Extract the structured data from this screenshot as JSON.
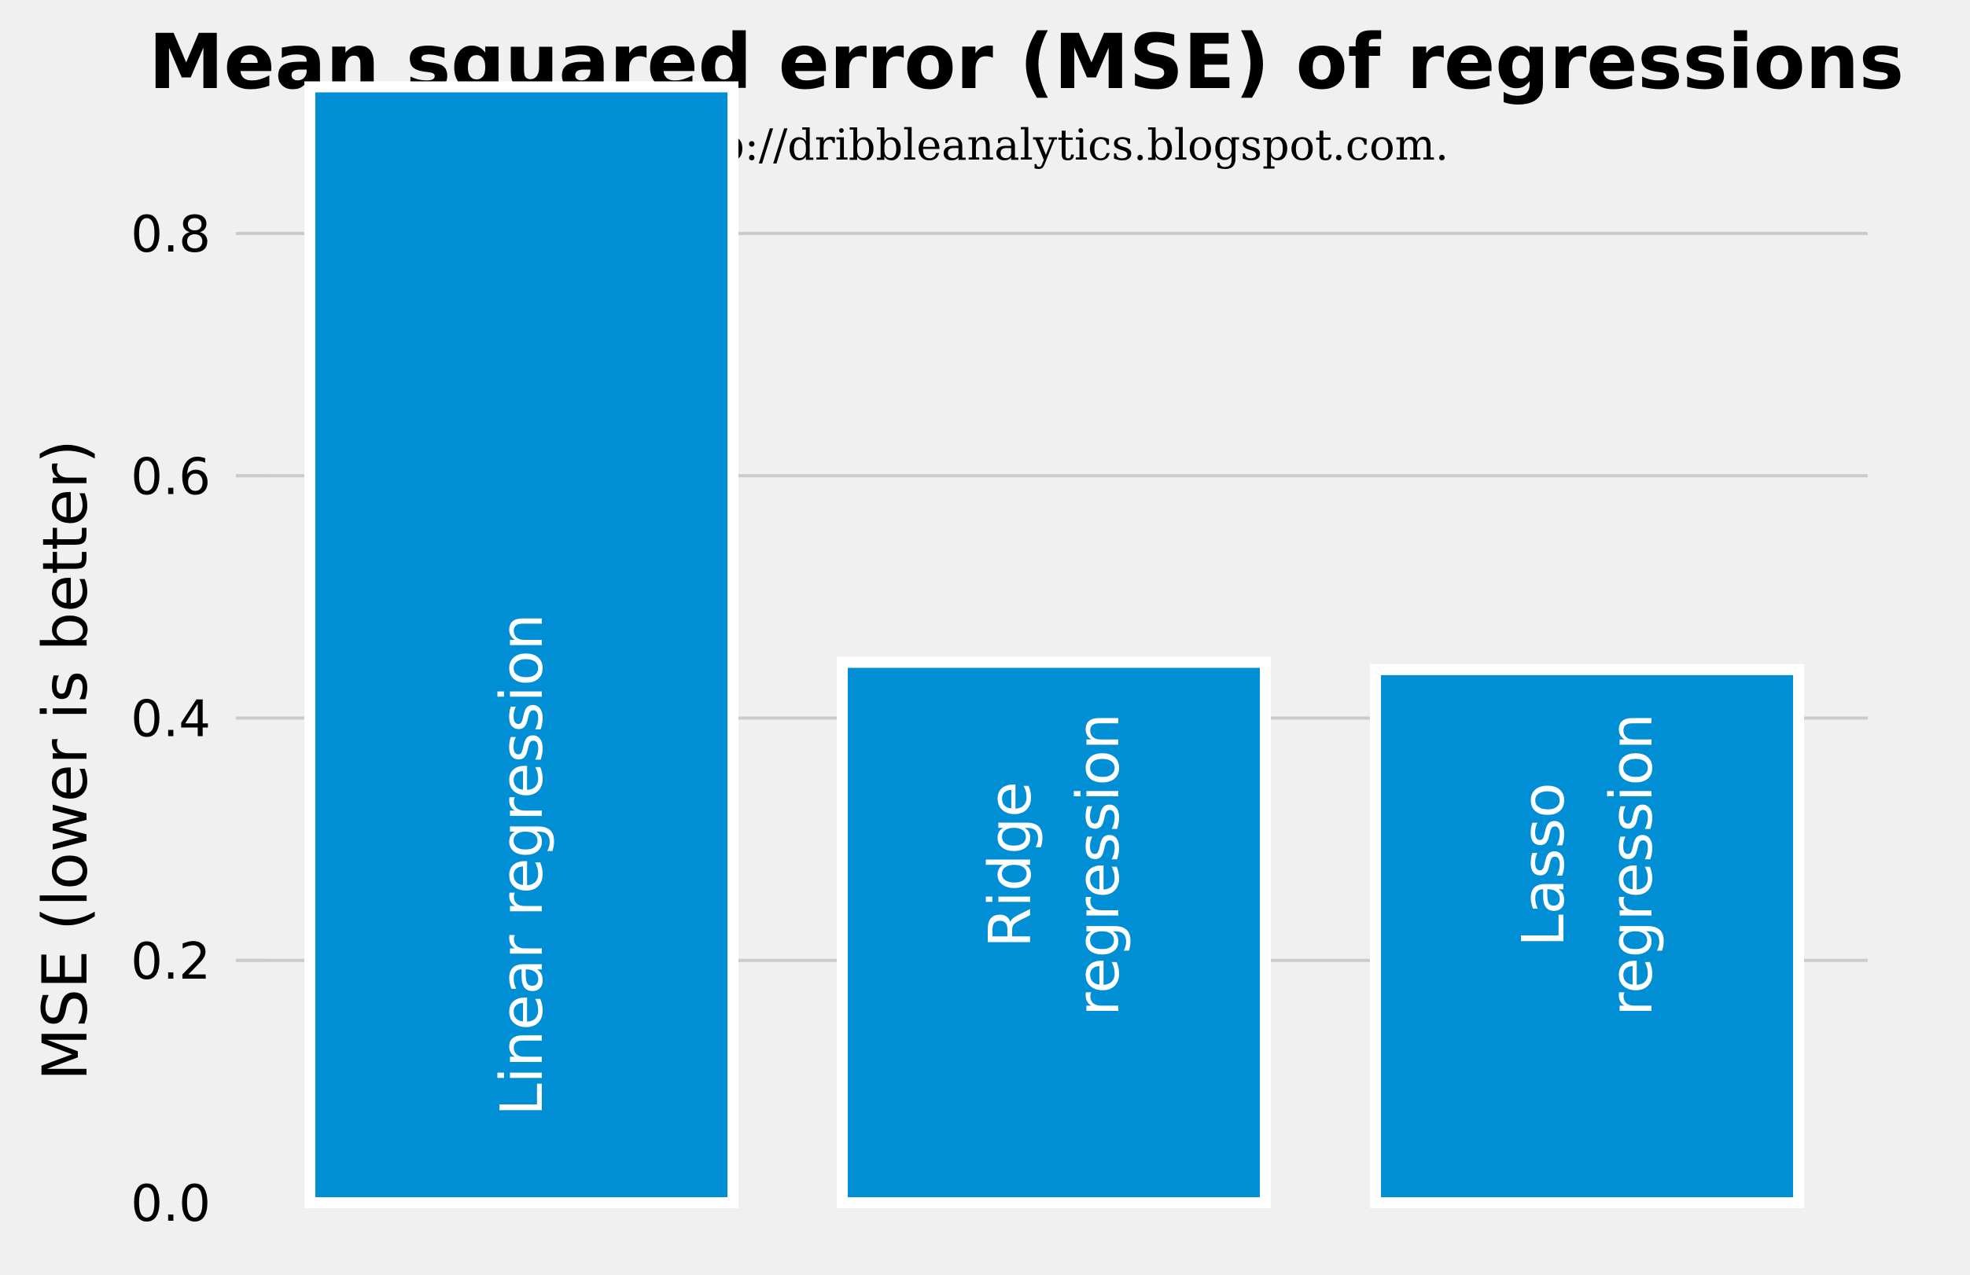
{
  "chart_data": {
    "type": "bar",
    "title": "Mean squared error (MSE) of regressions",
    "subtitle": "http://dribbleanalytics.blogspot.com.",
    "xlabel": "",
    "ylabel": "MSE (lower is better)",
    "categories": [
      "Linear regression",
      "Ridge regression",
      "Lasso regression"
    ],
    "category_label_lines": [
      [
        "Linear regression"
      ],
      [
        "Ridge",
        "regression"
      ],
      [
        "Lasso",
        "regression"
      ]
    ],
    "values": [
      0.921,
      0.446,
      0.44
    ],
    "ylim": [
      0,
      0.92
    ],
    "yticks": [
      0.0,
      0.2,
      0.4,
      0.6,
      0.8
    ],
    "ytick_labels": [
      "0.0",
      "0.2",
      "0.4",
      "0.6",
      "0.8"
    ],
    "grid": true,
    "bar_color": "#008fd5",
    "bar_edge_color": "#ffffff",
    "background_color": "#f0f0f0",
    "grid_color": "#cbcbcb"
  }
}
